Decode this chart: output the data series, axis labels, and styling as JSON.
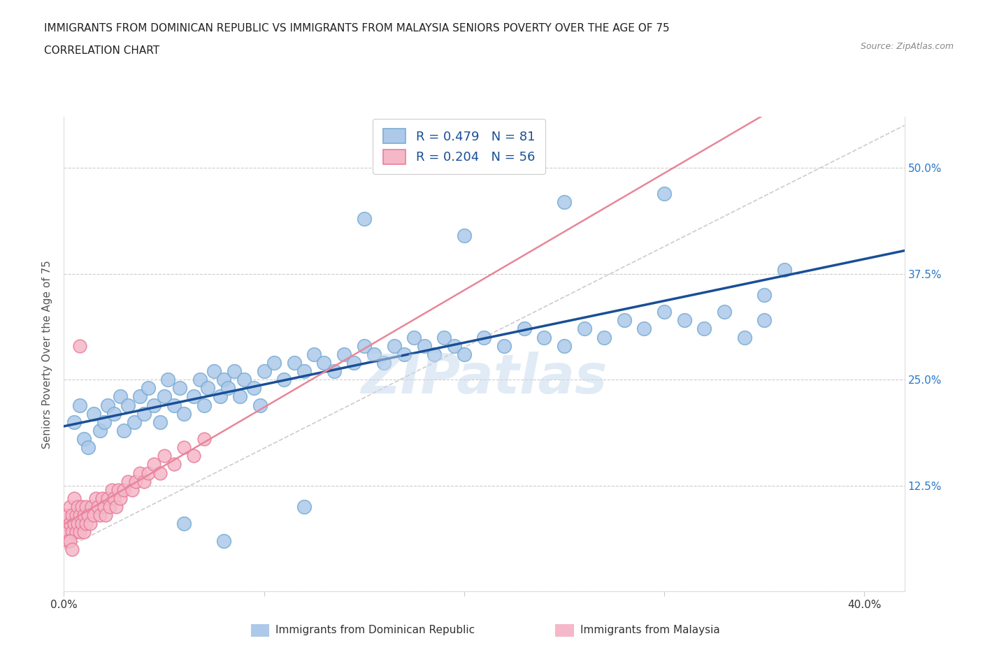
{
  "title_line1": "IMMIGRANTS FROM DOMINICAN REPUBLIC VS IMMIGRANTS FROM MALAYSIA SENIORS POVERTY OVER THE AGE OF 75",
  "title_line2": "CORRELATION CHART",
  "source": "Source: ZipAtlas.com",
  "ylabel": "Seniors Poverty Over the Age of 75",
  "xlim": [
    0.0,
    0.42
  ],
  "ylim": [
    0.0,
    0.56
  ],
  "xtick_positions": [
    0.0,
    0.1,
    0.2,
    0.3,
    0.4
  ],
  "xticklabels": [
    "0.0%",
    "",
    "",
    "",
    "40.0%"
  ],
  "ytick_positions": [
    0.0,
    0.125,
    0.25,
    0.375,
    0.5
  ],
  "yticklabels_right": [
    "",
    "12.5%",
    "25.0%",
    "37.5%",
    "50.0%"
  ],
  "blue_R": 0.479,
  "blue_N": 81,
  "pink_R": 0.204,
  "pink_N": 56,
  "blue_color": "#adc9ea",
  "blue_edge": "#7aadd4",
  "pink_color": "#f5b8c9",
  "pink_edge": "#e87f9a",
  "blue_line_color": "#1a4f96",
  "pink_line_color": "#e8869a",
  "dash_line_color": "#cccccc",
  "watermark": "ZIPatlas",
  "blue_scatter_x": [
    0.005,
    0.008,
    0.01,
    0.012,
    0.015,
    0.018,
    0.02,
    0.022,
    0.025,
    0.028,
    0.03,
    0.032,
    0.035,
    0.038,
    0.04,
    0.042,
    0.045,
    0.048,
    0.05,
    0.052,
    0.055,
    0.058,
    0.06,
    0.065,
    0.068,
    0.07,
    0.072,
    0.075,
    0.078,
    0.08,
    0.082,
    0.085,
    0.088,
    0.09,
    0.095,
    0.098,
    0.1,
    0.105,
    0.11,
    0.115,
    0.12,
    0.125,
    0.13,
    0.135,
    0.14,
    0.145,
    0.15,
    0.155,
    0.16,
    0.165,
    0.17,
    0.175,
    0.18,
    0.185,
    0.19,
    0.195,
    0.2,
    0.21,
    0.22,
    0.23,
    0.24,
    0.25,
    0.26,
    0.27,
    0.28,
    0.29,
    0.3,
    0.31,
    0.32,
    0.33,
    0.34,
    0.35,
    0.36,
    0.15,
    0.2,
    0.25,
    0.3,
    0.35,
    0.06,
    0.12,
    0.08
  ],
  "blue_scatter_y": [
    0.2,
    0.22,
    0.18,
    0.17,
    0.21,
    0.19,
    0.2,
    0.22,
    0.21,
    0.23,
    0.19,
    0.22,
    0.2,
    0.23,
    0.21,
    0.24,
    0.22,
    0.2,
    0.23,
    0.25,
    0.22,
    0.24,
    0.21,
    0.23,
    0.25,
    0.22,
    0.24,
    0.26,
    0.23,
    0.25,
    0.24,
    0.26,
    0.23,
    0.25,
    0.24,
    0.22,
    0.26,
    0.27,
    0.25,
    0.27,
    0.26,
    0.28,
    0.27,
    0.26,
    0.28,
    0.27,
    0.29,
    0.28,
    0.27,
    0.29,
    0.28,
    0.3,
    0.29,
    0.28,
    0.3,
    0.29,
    0.28,
    0.3,
    0.29,
    0.31,
    0.3,
    0.29,
    0.31,
    0.3,
    0.32,
    0.31,
    0.33,
    0.32,
    0.31,
    0.33,
    0.3,
    0.32,
    0.38,
    0.44,
    0.42,
    0.46,
    0.47,
    0.35,
    0.08,
    0.1,
    0.06
  ],
  "pink_scatter_x": [
    0.001,
    0.002,
    0.002,
    0.003,
    0.003,
    0.004,
    0.004,
    0.005,
    0.005,
    0.006,
    0.006,
    0.007,
    0.007,
    0.008,
    0.008,
    0.009,
    0.009,
    0.01,
    0.01,
    0.011,
    0.011,
    0.012,
    0.013,
    0.014,
    0.015,
    0.016,
    0.017,
    0.018,
    0.019,
    0.02,
    0.021,
    0.022,
    0.023,
    0.024,
    0.025,
    0.026,
    0.027,
    0.028,
    0.03,
    0.032,
    0.034,
    0.036,
    0.038,
    0.04,
    0.042,
    0.045,
    0.048,
    0.05,
    0.055,
    0.06,
    0.065,
    0.07,
    0.002,
    0.003,
    0.004,
    0.008
  ],
  "pink_scatter_y": [
    0.08,
    0.07,
    0.09,
    0.08,
    0.1,
    0.07,
    0.09,
    0.08,
    0.11,
    0.07,
    0.09,
    0.08,
    0.1,
    0.07,
    0.09,
    0.08,
    0.1,
    0.07,
    0.09,
    0.08,
    0.1,
    0.09,
    0.08,
    0.1,
    0.09,
    0.11,
    0.1,
    0.09,
    0.11,
    0.1,
    0.09,
    0.11,
    0.1,
    0.12,
    0.11,
    0.1,
    0.12,
    0.11,
    0.12,
    0.13,
    0.12,
    0.13,
    0.14,
    0.13,
    0.14,
    0.15,
    0.14,
    0.16,
    0.15,
    0.17,
    0.16,
    0.18,
    0.06,
    0.06,
    0.05,
    0.29
  ]
}
